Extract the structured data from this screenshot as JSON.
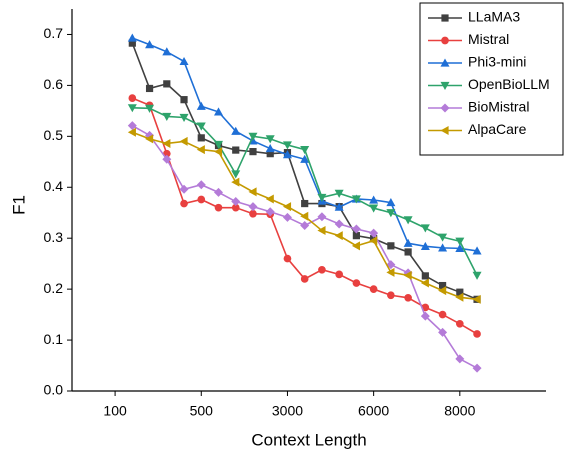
{
  "chart_data": {
    "type": "line",
    "x_label": "Context Length",
    "y_label": "F1",
    "x": [
      0,
      1,
      2,
      3,
      4,
      5,
      6,
      7,
      8,
      9,
      10,
      11,
      12,
      13,
      14,
      15,
      16,
      17,
      18,
      19,
      20
    ],
    "xlim": [
      -3.5,
      24
    ],
    "ylim": [
      0,
      0.75
    ],
    "xticks": [
      {
        "value": -1,
        "label": "100"
      },
      {
        "value": 4,
        "label": "500"
      },
      {
        "value": 9,
        "label": "3000"
      },
      {
        "value": 14,
        "label": "6000"
      },
      {
        "value": 19,
        "label": "8000"
      }
    ],
    "yticks": [
      {
        "value": 0,
        "label": "0.0"
      },
      0.1,
      0.2,
      0.3,
      0.4,
      0.5,
      0.6,
      0.7
    ],
    "legend": "top-right",
    "series": [
      {
        "name": "LLaMA3",
        "color": "#404040",
        "marker": "square",
        "values": [
          0.683,
          0.594,
          0.603,
          0.572,
          0.497,
          0.482,
          0.473,
          0.47,
          0.466,
          0.468,
          0.368,
          0.368,
          0.362,
          0.305,
          0.299,
          0.285,
          0.273,
          0.226,
          0.207,
          0.194,
          0.18
        ]
      },
      {
        "name": "Mistral",
        "color": "#e8403f",
        "marker": "circle",
        "values": [
          0.575,
          0.561,
          0.466,
          0.368,
          0.376,
          0.36,
          0.36,
          0.348,
          0.347,
          0.26,
          0.22,
          0.238,
          0.229,
          0.212,
          0.2,
          0.188,
          0.183,
          0.164,
          0.15,
          0.132,
          0.112
        ]
      },
      {
        "name": "Phi3-mini",
        "color": "#1f6fd6",
        "marker": "triangle-up",
        "values": [
          0.693,
          0.68,
          0.666,
          0.647,
          0.559,
          0.548,
          0.51,
          0.491,
          0.476,
          0.464,
          0.455,
          0.373,
          0.361,
          0.377,
          0.375,
          0.37,
          0.29,
          0.284,
          0.281,
          0.28,
          0.275
        ]
      },
      {
        "name": "OpenBioLLM",
        "color": "#2ea36b",
        "marker": "triangle-down",
        "values": [
          0.556,
          0.555,
          0.539,
          0.537,
          0.52,
          0.484,
          0.426,
          0.5,
          0.495,
          0.483,
          0.474,
          0.38,
          0.388,
          0.377,
          0.359,
          0.35,
          0.336,
          0.32,
          0.302,
          0.294,
          0.227
        ]
      },
      {
        "name": "BioMistral",
        "color": "#b47bd8",
        "marker": "diamond",
        "values": [
          0.521,
          0.502,
          0.455,
          0.396,
          0.405,
          0.39,
          0.372,
          0.362,
          0.352,
          0.341,
          0.325,
          0.342,
          0.328,
          0.318,
          0.31,
          0.248,
          0.232,
          0.147,
          0.115,
          0.063,
          0.045
        ]
      },
      {
        "name": "AlpaCare",
        "color": "#c49a00",
        "marker": "triangle-left",
        "values": [
          0.508,
          0.495,
          0.486,
          0.49,
          0.474,
          0.47,
          0.41,
          0.391,
          0.377,
          0.362,
          0.343,
          0.315,
          0.305,
          0.285,
          0.295,
          0.233,
          0.227,
          0.212,
          0.197,
          0.184,
          0.18
        ]
      }
    ]
  }
}
